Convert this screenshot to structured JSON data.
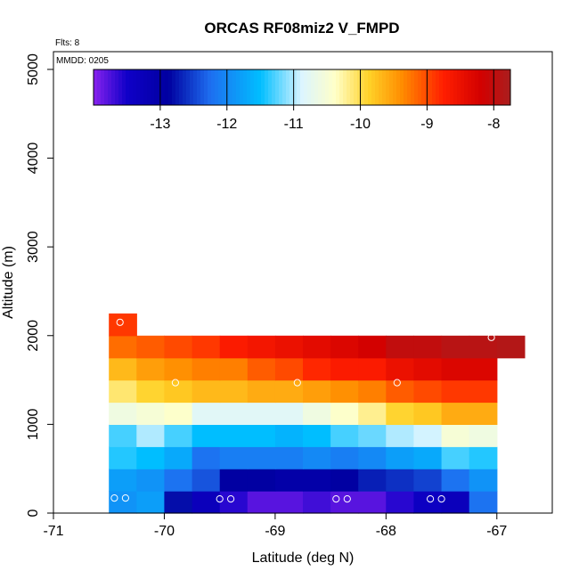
{
  "chart_data": {
    "type": "heatmap",
    "title": "ORCAS RF08miz2 V_FMPD",
    "annotation_flights": "Flts: 8",
    "annotation_date": "MMDD: 0205",
    "xlabel": "Latitude (deg N)",
    "ylabel": "Altitude (m)",
    "xlim": [
      -71,
      -66.5
    ],
    "ylim": [
      0,
      5200
    ],
    "x_ticks": [
      -71,
      -70,
      -69,
      -68,
      -67
    ],
    "y_ticks": [
      0,
      1000,
      2000,
      3000,
      4000,
      5000
    ],
    "x_tick_labels": [
      "-71",
      "-70",
      "-69",
      "-68",
      "-67"
    ],
    "y_tick_labels": [
      "0",
      "1000",
      "2000",
      "3000",
      "4000",
      "5000"
    ],
    "colorbar": {
      "range": [
        -14,
        -7.75
      ],
      "ticks": [
        -13,
        -12,
        -11,
        -10,
        -9,
        -8
      ],
      "tick_labels": [
        "-13",
        "-12",
        "-11",
        "-10",
        "-9",
        "-8"
      ]
    },
    "cells": {
      "lat_start": -71.5,
      "lat_step": 0.25,
      "alt_start": 0,
      "alt_step": 250,
      "rows": [
        {
          "alt": 0,
          "col0": 4,
          "values": [
            -11.9,
            -11.8,
            -12.8,
            -13.3,
            -13.6,
            -13.8,
            -13.8,
            -13.7,
            -13.8,
            -13.8,
            -13.6,
            -13.4,
            -13.3,
            -12.2
          ]
        },
        {
          "alt": 250,
          "col0": 4,
          "values": [
            -11.8,
            -11.9,
            -12.2,
            -12.4,
            -12.9,
            -12.9,
            -13.0,
            -13.0,
            -12.9,
            -12.7,
            -12.6,
            -12.5,
            -12.2,
            -11.9
          ]
        },
        {
          "alt": 500,
          "col0": 4,
          "values": [
            -11.4,
            -11.5,
            -11.7,
            -12.2,
            -12.1,
            -12.1,
            -12.1,
            -12.0,
            -12.1,
            -12.0,
            -11.8,
            -11.7,
            -11.3,
            -11.4
          ]
        },
        {
          "alt": 750,
          "col0": 4,
          "values": [
            -11.3,
            -11.0,
            -11.3,
            -11.5,
            -11.5,
            -11.5,
            -11.6,
            -11.5,
            -11.3,
            -11.2,
            -11.0,
            -10.9,
            -10.5,
            -10.6
          ]
        },
        {
          "alt": 1000,
          "col0": 4,
          "values": [
            -10.6,
            -10.5,
            -10.4,
            -10.8,
            -10.8,
            -10.8,
            -10.8,
            -10.6,
            -10.4,
            -10.2,
            -9.9,
            -9.8,
            -9.6,
            -9.6
          ]
        },
        {
          "alt": 1250,
          "col0": 4,
          "values": [
            -10.1,
            -9.9,
            -9.8,
            -9.7,
            -9.7,
            -9.6,
            -9.6,
            -9.5,
            -9.4,
            -9.3,
            -9.1,
            -9.0,
            -8.9,
            -8.9
          ]
        },
        {
          "alt": 1500,
          "col0": 4,
          "values": [
            -9.7,
            -9.5,
            -9.4,
            -9.3,
            -9.3,
            -9.1,
            -9.0,
            -8.8,
            -8.7,
            -8.7,
            -8.5,
            -8.4,
            -8.3,
            -8.3
          ]
        },
        {
          "alt": 1750,
          "col0": 4,
          "values": [
            -9.2,
            -9.1,
            -9.0,
            -8.9,
            -8.7,
            -8.6,
            -8.5,
            -8.4,
            -8.3,
            -8.2,
            -8.0,
            -8.0,
            -7.9,
            -7.9,
            -7.85
          ]
        },
        {
          "alt": 2000,
          "col0": 4,
          "values": [
            -8.9
          ]
        }
      ]
    },
    "sample_points": [
      {
        "lat": -70.4,
        "alt": 2150
      },
      {
        "lat": -70.45,
        "alt": 170
      },
      {
        "lat": -70.35,
        "alt": 170
      },
      {
        "lat": -69.9,
        "alt": 1470
      },
      {
        "lat": -69.5,
        "alt": 160
      },
      {
        "lat": -69.4,
        "alt": 160
      },
      {
        "lat": -68.8,
        "alt": 1470
      },
      {
        "lat": -68.45,
        "alt": 160
      },
      {
        "lat": -68.35,
        "alt": 160
      },
      {
        "lat": -67.9,
        "alt": 1470
      },
      {
        "lat": -67.6,
        "alt": 160
      },
      {
        "lat": -67.5,
        "alt": 160
      },
      {
        "lat": -67.05,
        "alt": 1980
      }
    ]
  }
}
